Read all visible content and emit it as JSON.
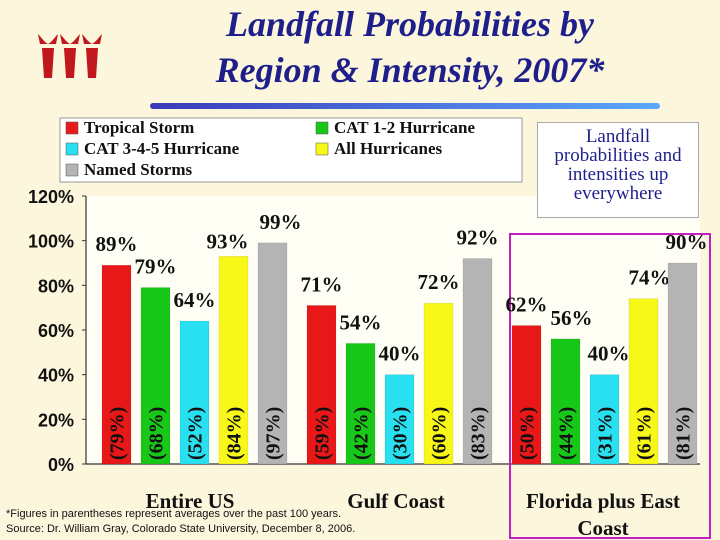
{
  "title_line1": "Landfall Probabilities by",
  "title_line2": "Region & Intensity, 2007*",
  "annotation": "Landfall probabilities and intensities up everywhere",
  "footnote_line1": "*Figures in parentheses represent averages over the past 100 years.",
  "footnote_line2": "Source: Dr. William Gray, Colorado State University, December 8, 2006.",
  "colors": {
    "tropical_storm": "#e81818",
    "cat_1_2": "#18c818",
    "cat_3_4_5": "#28e0f0",
    "all_hurricanes": "#f8f818",
    "named_storms": "#b4b4b4",
    "highlight_box": "#c020c0",
    "logo": "#c0181c"
  },
  "chart_data": {
    "type": "bar",
    "ylim": [
      0,
      120
    ],
    "yticks": [
      "0%",
      "20%",
      "40%",
      "60%",
      "80%",
      "100%",
      "120%"
    ],
    "categories": [
      "Entire US",
      "Gulf Coast",
      "Florida plus East Coast"
    ],
    "series": [
      {
        "name": "Tropical Storm",
        "values": [
          89,
          71,
          62
        ],
        "labels": [
          "89%",
          "71%",
          "62%"
        ],
        "historical": [
          "(79%)",
          "(59%)",
          "(50%)"
        ]
      },
      {
        "name": "CAT 1-2 Hurricane",
        "values": [
          79,
          54,
          56
        ],
        "labels": [
          "79%",
          "54%",
          "56%"
        ],
        "historical": [
          "(68%)",
          "(42%)",
          "(44%)"
        ]
      },
      {
        "name": "CAT 3-4-5 Hurricane",
        "values": [
          64,
          40,
          40
        ],
        "labels": [
          "64%",
          "40%",
          "40%"
        ],
        "historical": [
          "(52%)",
          "(30%)",
          "(31%)"
        ]
      },
      {
        "name": "All Hurricanes",
        "values": [
          93,
          72,
          74
        ],
        "labels": [
          "93%",
          "72%",
          "74%"
        ],
        "historical": [
          "(84%)",
          "(60%)",
          "(61%)"
        ]
      },
      {
        "name": "Named Storms",
        "values": [
          99,
          92,
          90
        ],
        "labels": [
          "99%",
          "92%",
          "90%"
        ],
        "historical": [
          "(97%)",
          "(83%)",
          "(81%)"
        ]
      }
    ]
  }
}
